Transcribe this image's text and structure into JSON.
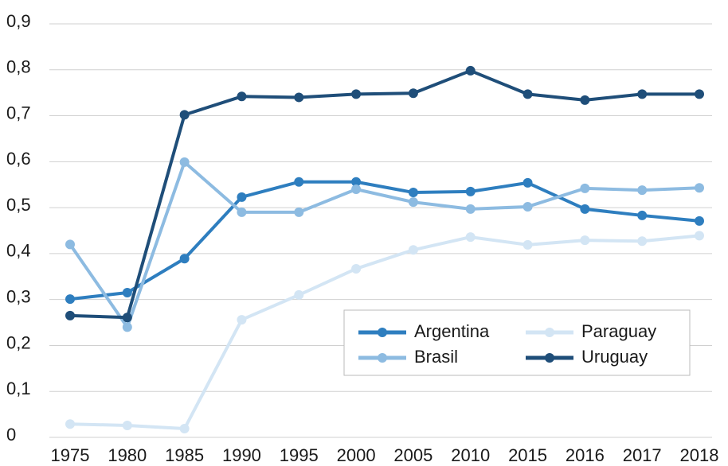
{
  "chart_data": {
    "type": "line",
    "categories": [
      "1975",
      "1980",
      "1985",
      "1990",
      "1995",
      "2000",
      "2005",
      "2010",
      "2015",
      "2016",
      "2017",
      "2018"
    ],
    "series": [
      {
        "name": "Argentina",
        "color": "#2e7ebf",
        "values": [
          0.301,
          0.315,
          0.389,
          0.523,
          0.556,
          0.556,
          0.533,
          0.535,
          0.554,
          0.497,
          0.483,
          0.471
        ]
      },
      {
        "name": "Brasil",
        "color": "#8dbbe1",
        "values": [
          0.42,
          0.24,
          0.599,
          0.49,
          0.49,
          0.54,
          0.512,
          0.497,
          0.502,
          0.542,
          0.538,
          0.543
        ]
      },
      {
        "name": "Paraguay",
        "color": "#d3e5f4",
        "values": [
          0.029,
          0.026,
          0.019,
          0.256,
          0.31,
          0.367,
          0.408,
          0.436,
          0.419,
          0.429,
          0.427,
          0.439
        ]
      },
      {
        "name": "Uruguay",
        "color": "#1f4e79",
        "values": [
          0.265,
          0.261,
          0.702,
          0.742,
          0.74,
          0.747,
          0.749,
          0.798,
          0.747,
          0.734,
          0.747,
          0.747
        ]
      }
    ],
    "ylim": [
      0,
      0.9
    ],
    "yticks": [
      0,
      {
        "value": 0.1,
        "label": "0,1"
      },
      {
        "value": 0.2,
        "label": "0,2"
      },
      {
        "value": 0.3,
        "label": "0,3"
      },
      {
        "value": 0.4,
        "label": "0,4"
      },
      {
        "value": 0.5,
        "label": "0,5"
      },
      {
        "value": 0.6,
        "label": "0,6"
      },
      {
        "value": 0.7,
        "label": "0,7"
      },
      {
        "value": 0.8,
        "label": "0,8"
      },
      {
        "value": 0.9,
        "label": "0,9"
      }
    ],
    "grid": true
  }
}
